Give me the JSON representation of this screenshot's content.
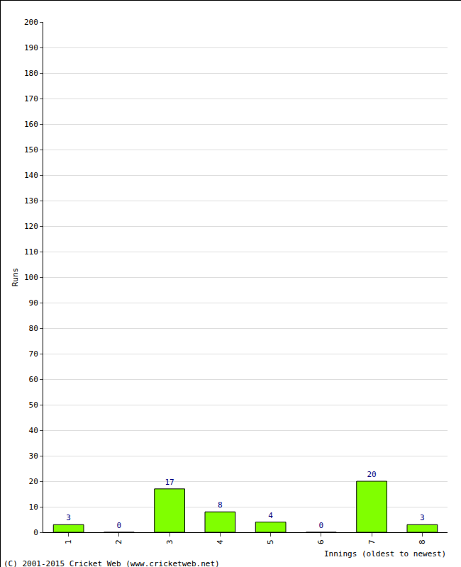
{
  "chart_data": {
    "type": "bar",
    "categories": [
      "1",
      "2",
      "3",
      "4",
      "5",
      "6",
      "7",
      "8"
    ],
    "values": [
      3,
      0,
      17,
      8,
      4,
      0,
      20,
      3
    ],
    "color": "#80ff00",
    "x_label": "Innings (oldest to newest)",
    "y_label": "Runs",
    "ylim": [
      0,
      200
    ],
    "yticks": [
      0,
      10,
      20,
      30,
      40,
      50,
      60,
      70,
      80,
      90,
      100,
      110,
      120,
      130,
      140,
      150,
      160,
      170,
      180,
      190,
      200
    ],
    "grid": true,
    "data_labels": true,
    "annotations": [
      "(C) 2001-2015 Cricket Web (www.cricketweb.net)"
    ]
  }
}
